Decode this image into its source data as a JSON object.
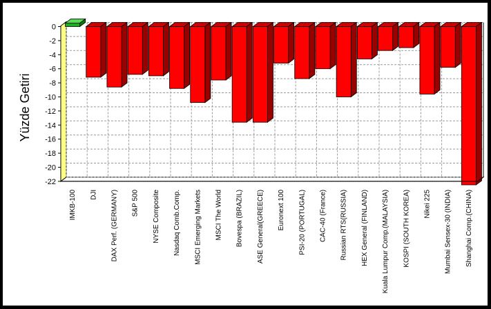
{
  "chart_data": {
    "type": "bar",
    "title": "",
    "xlabel": "",
    "ylabel": "Yüzde Getiri",
    "ylim": [
      -22,
      0
    ],
    "yticks": [
      0,
      -2,
      -4,
      -6,
      -8,
      -10,
      -12,
      -14,
      -16,
      -18,
      -20,
      -22
    ],
    "grid": true,
    "legend": "none",
    "categories": [
      "IMKB-100",
      "DJI",
      "DAX Perf. (GERMANY)",
      "S&P 500",
      "NYSE Composite",
      "Nasdaq Comb.Comp.",
      "MSCI Emerging Markets",
      "MSCI The World",
      "Bovespa (BRAZIL)",
      "ASE General(GREECE)",
      "Euronext 100",
      "PSI-20 (PORTUGAL)",
      "CAC-40 (France)",
      "Russian RTS(RUSSIA)",
      "HEX General (FINLAND)",
      "Kuala Lumpur Comp.(MALAYSIA)",
      "KOSPI (SOUTH KOREA)",
      "Nikei 225",
      "Mumbai Sensex-30 (INDIA)",
      "Shanghai Comp.(CHINA)"
    ],
    "values": [
      0.5,
      -7.2,
      -8.6,
      -6.8,
      -7.0,
      -8.8,
      -10.8,
      -7.6,
      -13.6,
      -13.6,
      -5.2,
      -7.4,
      -6.0,
      -10.0,
      -4.6,
      -3.4,
      -3.0,
      -9.6,
      -5.8,
      -22.5
    ],
    "colors": {
      "positive": "#22aa22",
      "negative": "#ff0000",
      "negative_side": "#990000",
      "negative_top": "#cc0000",
      "grid": "#9a9a9a",
      "wall": "#ffff88",
      "frame": "#000000",
      "background": "#ffffff"
    }
  }
}
